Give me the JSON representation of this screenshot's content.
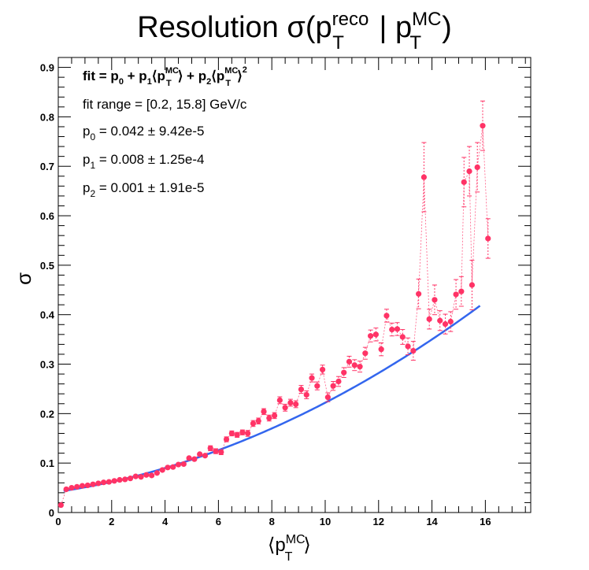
{
  "chart_data": {
    "type": "scatter",
    "title": {
      "main": "Resolution σ(p",
      "sup1": "reco",
      "sub1": "T",
      "sep": " | p",
      "sup2": "MC",
      "sub2": "T",
      "close": ")"
    },
    "xlabel": {
      "open": "⟨p",
      "sup": "MC",
      "sub": "T",
      "close": "⟩"
    },
    "ylabel": "σ",
    "xlim": [
      0,
      17.7
    ],
    "ylim": [
      0,
      0.92
    ],
    "xticks": [
      "0",
      "2",
      "4",
      "6",
      "8",
      "10",
      "12",
      "14",
      "16"
    ],
    "yticks": [
      "0",
      "0.1",
      "0.2",
      "0.3",
      "0.4",
      "0.5",
      "0.6",
      "0.7",
      "0.8",
      "0.9"
    ],
    "grid": false,
    "marker_color": "#ff3366",
    "fit_color": "#3366ee",
    "fit": {
      "p0": 0.042,
      "p1": 0.008,
      "p2": 0.001,
      "xmin": 0.2,
      "xmax": 15.8
    },
    "annotations": {
      "formula": {
        "t1": "fit = p",
        "s1": "0",
        "t2": " + p",
        "s2": "1",
        "t3": "⟨p",
        "sup3": "MC",
        "s3": "T",
        "t4": "⟩ + p",
        "s4": "2",
        "t5": "⟨p",
        "sup5": "MC",
        "s5": "T",
        "t6": "⟩",
        "sup6": "2"
      },
      "range": "fit range = [0.2, 15.8] GeV/c",
      "p0": {
        "a": "p",
        "sub": "0",
        "b": " = 0.042 ± 9.42e-5"
      },
      "p1": {
        "a": "p",
        "sub": "1",
        "b": " = 0.008 ± 1.25e-4"
      },
      "p2": {
        "a": "p",
        "sub": "2",
        "b": " = 0.001 ± 1.91e-5"
      }
    },
    "series": [
      {
        "points": [
          [
            0.1,
            0.015,
            0.003
          ],
          [
            0.3,
            0.047,
            0.002
          ],
          [
            0.5,
            0.05,
            0.002
          ],
          [
            0.7,
            0.052,
            0.002
          ],
          [
            0.9,
            0.054,
            0.002
          ],
          [
            1.1,
            0.055,
            0.002
          ],
          [
            1.3,
            0.057,
            0.002
          ],
          [
            1.5,
            0.059,
            0.002
          ],
          [
            1.7,
            0.061,
            0.002
          ],
          [
            1.9,
            0.062,
            0.002
          ],
          [
            2.1,
            0.064,
            0.002
          ],
          [
            2.3,
            0.066,
            0.002
          ],
          [
            2.5,
            0.067,
            0.002
          ],
          [
            2.7,
            0.069,
            0.002
          ],
          [
            2.9,
            0.073,
            0.003
          ],
          [
            3.1,
            0.072,
            0.003
          ],
          [
            3.3,
            0.076,
            0.003
          ],
          [
            3.5,
            0.075,
            0.003
          ],
          [
            3.7,
            0.08,
            0.003
          ],
          [
            3.9,
            0.086,
            0.003
          ],
          [
            4.1,
            0.091,
            0.003
          ],
          [
            4.3,
            0.092,
            0.003
          ],
          [
            4.5,
            0.097,
            0.004
          ],
          [
            4.7,
            0.098,
            0.004
          ],
          [
            4.9,
            0.11,
            0.004
          ],
          [
            5.1,
            0.108,
            0.004
          ],
          [
            5.3,
            0.118,
            0.004
          ],
          [
            5.5,
            0.115,
            0.004
          ],
          [
            5.7,
            0.13,
            0.005
          ],
          [
            5.9,
            0.124,
            0.005
          ],
          [
            6.1,
            0.122,
            0.005
          ],
          [
            6.3,
            0.148,
            0.005
          ],
          [
            6.5,
            0.16,
            0.005
          ],
          [
            6.7,
            0.157,
            0.005
          ],
          [
            6.9,
            0.162,
            0.005
          ],
          [
            7.1,
            0.16,
            0.006
          ],
          [
            7.3,
            0.18,
            0.006
          ],
          [
            7.5,
            0.185,
            0.006
          ],
          [
            7.7,
            0.204,
            0.006
          ],
          [
            7.9,
            0.191,
            0.006
          ],
          [
            8.1,
            0.196,
            0.006
          ],
          [
            8.3,
            0.227,
            0.007
          ],
          [
            8.5,
            0.212,
            0.007
          ],
          [
            8.7,
            0.222,
            0.007
          ],
          [
            8.9,
            0.219,
            0.007
          ],
          [
            9.1,
            0.249,
            0.008
          ],
          [
            9.3,
            0.238,
            0.008
          ],
          [
            9.5,
            0.272,
            0.008
          ],
          [
            9.7,
            0.256,
            0.008
          ],
          [
            9.9,
            0.289,
            0.009
          ],
          [
            10.1,
            0.233,
            0.009
          ],
          [
            10.3,
            0.256,
            0.009
          ],
          [
            10.5,
            0.265,
            0.01
          ],
          [
            10.7,
            0.283,
            0.01
          ],
          [
            10.9,
            0.305,
            0.011
          ],
          [
            11.1,
            0.298,
            0.011
          ],
          [
            11.3,
            0.295,
            0.011
          ],
          [
            11.5,
            0.322,
            0.012
          ],
          [
            11.7,
            0.357,
            0.012
          ],
          [
            11.9,
            0.36,
            0.013
          ],
          [
            12.1,
            0.33,
            0.013
          ],
          [
            12.3,
            0.398,
            0.013
          ],
          [
            12.5,
            0.37,
            0.013
          ],
          [
            12.7,
            0.371,
            0.013
          ],
          [
            12.9,
            0.355,
            0.015
          ],
          [
            13.1,
            0.336,
            0.017
          ],
          [
            13.3,
            0.327,
            0.019
          ],
          [
            13.5,
            0.442,
            0.03
          ],
          [
            13.7,
            0.678,
            0.07
          ],
          [
            13.9,
            0.391,
            0.02
          ],
          [
            14.1,
            0.43,
            0.03
          ],
          [
            14.3,
            0.388,
            0.02
          ],
          [
            14.5,
            0.381,
            0.02
          ],
          [
            14.7,
            0.386,
            0.02
          ],
          [
            14.9,
            0.441,
            0.03
          ],
          [
            15.1,
            0.447,
            0.03
          ],
          [
            15.2,
            0.668,
            0.05
          ],
          [
            15.4,
            0.69,
            0.05
          ],
          [
            15.5,
            0.46,
            0.05
          ],
          [
            15.7,
            0.698,
            0.05
          ],
          [
            15.9,
            0.782,
            0.05
          ],
          [
            16.1,
            0.554,
            0.04
          ]
        ]
      }
    ]
  }
}
